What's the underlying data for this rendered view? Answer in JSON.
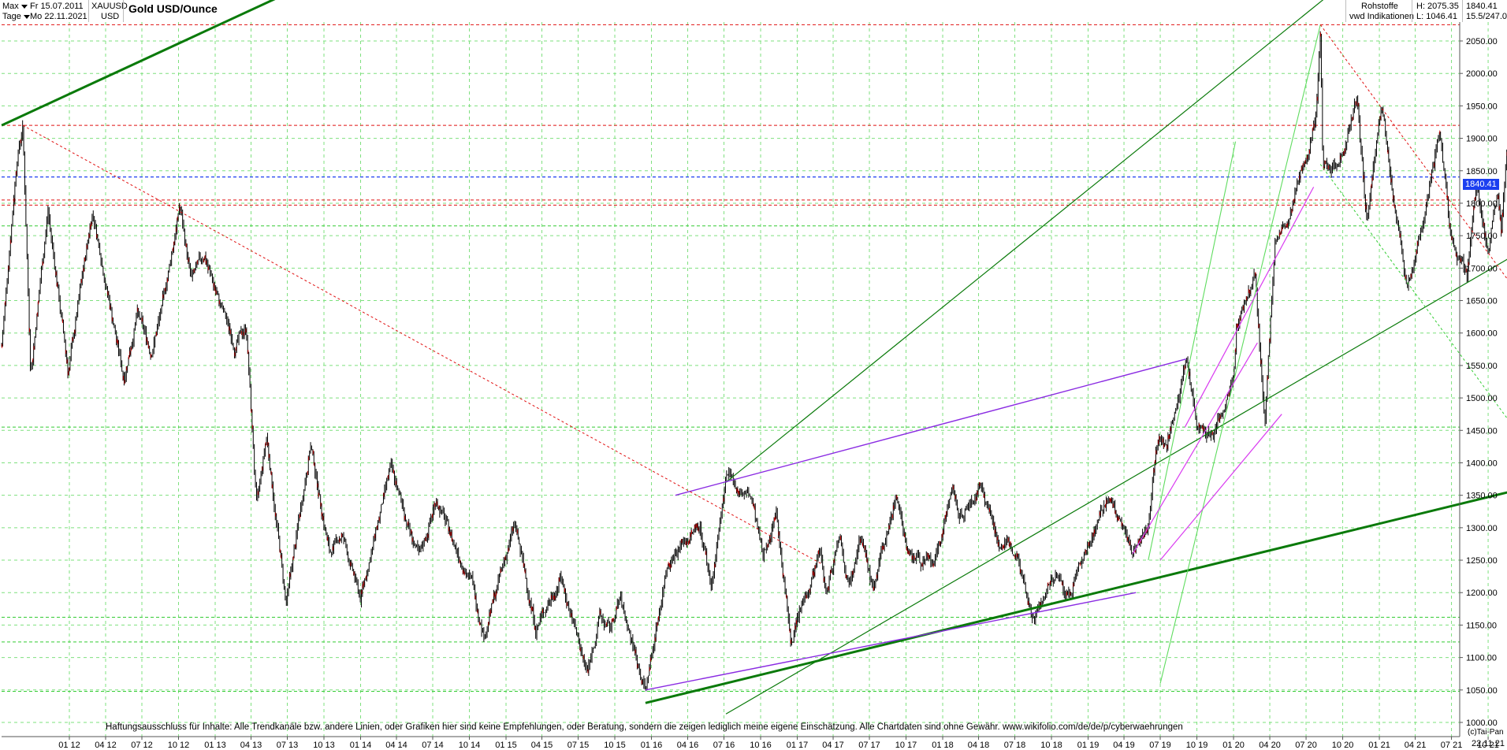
{
  "header": {
    "period_label": "Max",
    "interval_label": "Tage",
    "from_date": "Fr 15.07.2011",
    "to_date": "Mo 22.11.2021",
    "symbol": "XAUUSD",
    "currency": "USD",
    "title": "Gold USD/Ounce",
    "category": "Rohstoffe",
    "source": "vwd Indikationen",
    "high": "H: 2075.35",
    "low": "L: 1046.41",
    "last": "1840.41",
    "change": "15.5/247.0"
  },
  "price_box": "1840.41",
  "disclaimer": "Haftungsausschluss für Inhalte: Alle Trendkanäle bzw. andere Linien, oder Grafiken hier sind keine Empfehlungen, oder Beratung, sondern die zeigen lediglich meine eigene Einschätzung. Alle Chartdaten sind ohne Gewähr.  www.wikifolio.com/de/de/p/cyberwaehrungen",
  "footer": {
    "credit": "(c)Tai-Pan",
    "date": "22.11.21"
  },
  "colors": {
    "current_price_line": "#1c3ff0",
    "resistance_lines": "#e01010",
    "trend_lines": "#0a7a0a",
    "support_lines": "#33cc33",
    "channel_lines": "#8a2be2",
    "candles": "#000000",
    "grid": "#7ee07e"
  },
  "chart_data": {
    "type": "candlestick",
    "title": "Gold USD/Ounce",
    "symbol": "XAUUSD",
    "xlabel": "",
    "ylabel": "",
    "ylim": [
      1000,
      2100
    ],
    "x_ticks": [
      "01 12",
      "04 12",
      "07 12",
      "10 12",
      "01 13",
      "04 13",
      "07 13",
      "10 13",
      "01 14",
      "04 14",
      "07 14",
      "10 14",
      "01 15",
      "04 15",
      "07 15",
      "10 15",
      "01 16",
      "04 16",
      "07 16",
      "10 16",
      "01 17",
      "04 17",
      "07 17",
      "10 17",
      "01 18",
      "04 18",
      "07 18",
      "10 18",
      "01 19",
      "04 19",
      "07 19",
      "10 19",
      "01 20",
      "04 20",
      "07 20",
      "10 20",
      "01 21",
      "04 21",
      "07 21",
      "10 21"
    ],
    "y_ticks": [
      1000,
      1050,
      1100,
      1150,
      1200,
      1250,
      1300,
      1350,
      1400,
      1450,
      1500,
      1550,
      1600,
      1650,
      1700,
      1750,
      1800,
      1850,
      1900,
      1950,
      2000,
      2050
    ],
    "y_tick_labels": [
      "1000.00",
      "1050.00",
      "1100.00",
      "1150.00",
      "1200.00",
      "1250.00",
      "1300.00",
      "1350.00",
      "1400.00",
      "1450.00",
      "1500.00",
      "1550.00",
      "1600.00",
      "1650.00",
      "1700.00",
      "1750.00",
      "1800.00",
      "1850.00",
      "1900.00",
      "1950.00",
      "2000.00",
      "2050.00"
    ],
    "price_path": [
      [
        "2011-07-15",
        1580
      ],
      [
        "2011-08-22",
        1870
      ],
      [
        "2011-09-06",
        1920
      ],
      [
        "2011-09-26",
        1540
      ],
      [
        "2011-11-08",
        1790
      ],
      [
        "2011-12-29",
        1540
      ],
      [
        "2012-02-28",
        1790
      ],
      [
        "2012-05-16",
        1530
      ],
      [
        "2012-06-19",
        1630
      ],
      [
        "2012-07-24",
        1570
      ],
      [
        "2012-08-21",
        1640
      ],
      [
        "2012-10-04",
        1795
      ],
      [
        "2012-11-02",
        1680
      ],
      [
        "2012-12-05",
        1720
      ],
      [
        "2013-01-07",
        1655
      ],
      [
        "2013-02-20",
        1580
      ],
      [
        "2013-03-20",
        1610
      ],
      [
        "2013-04-15",
        1330
      ],
      [
        "2013-05-10",
        1440
      ],
      [
        "2013-06-28",
        1180
      ],
      [
        "2013-08-28",
        1430
      ],
      [
        "2013-10-15",
        1260
      ],
      [
        "2013-11-15",
        1290
      ],
      [
        "2013-12-31",
        1190
      ],
      [
        "2014-03-17",
        1390
      ],
      [
        "2014-05-28",
        1250
      ],
      [
        "2014-07-10",
        1345
      ],
      [
        "2014-08-20",
        1280
      ],
      [
        "2014-10-08",
        1215
      ],
      [
        "2014-11-07",
        1135
      ],
      [
        "2015-01-22",
        1305
      ],
      [
        "2015-03-17",
        1145
      ],
      [
        "2015-05-18",
        1225
      ],
      [
        "2015-07-24",
        1075
      ],
      [
        "2015-08-24",
        1165
      ],
      [
        "2015-09-18",
        1140
      ],
      [
        "2015-10-14",
        1190
      ],
      [
        "2015-12-17",
        1050
      ],
      [
        "2016-02-11",
        1250
      ],
      [
        "2016-03-10",
        1270
      ],
      [
        "2016-05-02",
        1305
      ],
      [
        "2016-05-30",
        1210
      ],
      [
        "2016-07-06",
        1375
      ],
      [
        "2016-09-08",
        1345
      ],
      [
        "2016-10-07",
        1250
      ],
      [
        "2016-11-09",
        1330
      ],
      [
        "2016-12-15",
        1125
      ],
      [
        "2017-02-27",
        1265
      ],
      [
        "2017-03-15",
        1195
      ],
      [
        "2017-04-17",
        1295
      ],
      [
        "2017-05-09",
        1215
      ],
      [
        "2017-06-06",
        1295
      ],
      [
        "2017-07-10",
        1205
      ],
      [
        "2017-09-08",
        1355
      ],
      [
        "2017-10-06",
        1260
      ],
      [
        "2017-12-12",
        1240
      ],
      [
        "2018-01-25",
        1365
      ],
      [
        "2018-02-08",
        1310
      ],
      [
        "2018-04-11",
        1365
      ],
      [
        "2018-05-21",
        1280
      ],
      [
        "2018-07-10",
        1260
      ],
      [
        "2018-08-16",
        1160
      ],
      [
        "2018-10-11",
        1225
      ],
      [
        "2018-11-13",
        1195
      ],
      [
        "2019-01-31",
        1325
      ],
      [
        "2019-02-20",
        1345
      ],
      [
        "2019-04-23",
        1265
      ],
      [
        "2019-05-30",
        1300
      ],
      [
        "2019-06-25",
        1440
      ],
      [
        "2019-07-17",
        1425
      ],
      [
        "2019-09-04",
        1560
      ],
      [
        "2019-10-01",
        1460
      ],
      [
        "2019-11-12",
        1445
      ],
      [
        "2019-12-31",
        1520
      ],
      [
        "2020-01-08",
        1610
      ],
      [
        "2020-02-24",
        1690
      ],
      [
        "2020-03-19",
        1450
      ],
      [
        "2020-04-14",
        1745
      ],
      [
        "2020-05-18",
        1765
      ],
      [
        "2020-07-27",
        1940
      ],
      [
        "2020-08-06",
        2075
      ],
      [
        "2020-08-12",
        1865
      ],
      [
        "2020-09-21",
        1860
      ],
      [
        "2020-11-06",
        1960
      ],
      [
        "2020-11-30",
        1765
      ],
      [
        "2021-01-06",
        1960
      ],
      [
        "2021-03-08",
        1675
      ],
      [
        "2021-04-01",
        1710
      ],
      [
        "2021-06-01",
        1915
      ],
      [
        "2021-06-29",
        1750
      ],
      [
        "2021-08-09",
        1685
      ],
      [
        "2021-09-03",
        1830
      ],
      [
        "2021-09-29",
        1725
      ],
      [
        "2021-10-25",
        1810
      ],
      [
        "2021-11-03",
        1765
      ],
      [
        "2021-11-16",
        1875
      ],
      [
        "2021-11-22",
        1840
      ]
    ],
    "horizontal_levels": [
      {
        "y": 2075,
        "style": "red-dash"
      },
      {
        "y": 1920,
        "style": "red-dash"
      },
      {
        "y": 1840.41,
        "style": "blue-dash"
      },
      {
        "y": 1805,
        "style": "red-dash"
      },
      {
        "y": 1797,
        "style": "red-dash"
      },
      {
        "y": 1765,
        "style": "green-dash"
      },
      {
        "y": 1455,
        "style": "green-dash"
      },
      {
        "y": 1162,
        "style": "green-dash"
      },
      {
        "y": 1124,
        "style": "green-dash"
      },
      {
        "y": 1048,
        "style": "green-dash"
      }
    ],
    "trend_lines": [
      {
        "from": [
          "2011-07-15",
          1920
        ],
        "to": [
          "2014-02-20",
          2190
        ],
        "style": "green-thick"
      },
      {
        "from": [
          "2015-12-17",
          1030
        ],
        "to": [
          "2021-11-22",
          1355
        ],
        "style": "green-thick"
      },
      {
        "from": [
          "2016-07-06",
          1370
        ],
        "to": [
          "2020-09-15",
          2130
        ],
        "style": "green"
      },
      {
        "from": [
          "2016-07-06",
          1013
        ],
        "to": [
          "2021-11-22",
          1715
        ],
        "style": "green"
      },
      {
        "from": [
          "2019-07-01",
          1060
        ],
        "to": [
          "2020-08-06",
          2075
        ],
        "style": "lightgreen"
      },
      {
        "from": [
          "2019-06-01",
          1250
        ],
        "to": [
          "2020-01-06",
          1895
        ],
        "style": "lightgreen"
      },
      {
        "from": [
          "2016-03-01",
          1350
        ],
        "to": [
          "2019-09-04",
          1560
        ],
        "style": "purple"
      },
      {
        "from": [
          "2015-12-17",
          1050
        ],
        "to": [
          "2019-05-01",
          1200
        ],
        "style": "purple"
      },
      {
        "from": [
          "2019-04-23",
          1260
        ],
        "to": [
          "2020-03-01",
          1585
        ],
        "style": "magenta"
      },
      {
        "from": [
          "2019-09-01",
          1455
        ],
        "to": [
          "2020-07-20",
          1825
        ],
        "style": "magenta"
      },
      {
        "from": [
          "2019-07-01",
          1250
        ],
        "to": [
          "2020-05-01",
          1475
        ],
        "style": "magenta"
      },
      {
        "from": [
          "2011-09-06",
          1920
        ],
        "to": [
          "2017-03-01",
          1245
        ],
        "style": "red-dot"
      },
      {
        "from": [
          "2020-08-06",
          2075
        ],
        "to": [
          "2021-11-22",
          1680
        ],
        "style": "red-dot"
      },
      {
        "from": [
          "2020-08-06",
          1860
        ],
        "to": [
          "2021-11-22",
          1465
        ],
        "style": "green-dot"
      }
    ]
  }
}
